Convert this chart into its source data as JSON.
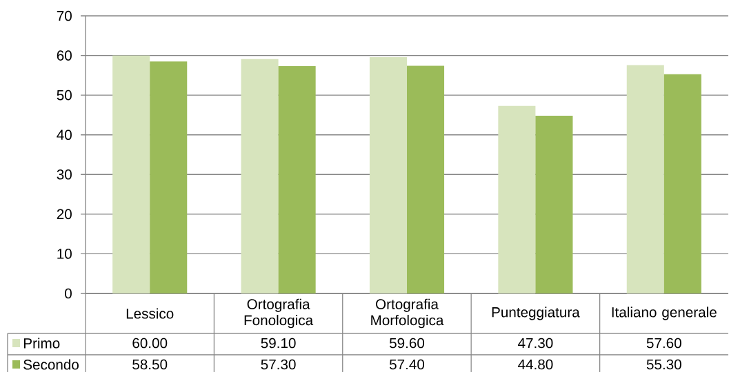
{
  "chart_data": {
    "type": "bar",
    "categories": [
      "Lessico",
      "Ortografia Fonologica",
      "Ortografia Morfologica",
      "Punteggiatura",
      "Italiano generale"
    ],
    "series": [
      {
        "name": "Primo",
        "color": "#d7e4bd",
        "values": [
          60.0,
          59.1,
          59.6,
          47.3,
          57.6
        ],
        "value_labels": [
          "60.00",
          "59.10",
          "59.60",
          "47.30",
          "57.60"
        ]
      },
      {
        "name": "Secondo",
        "color": "#9bbb59",
        "values": [
          58.5,
          57.3,
          57.4,
          44.8,
          55.3
        ],
        "value_labels": [
          "58.50",
          "57.30",
          "57.40",
          "44.80",
          "55.30"
        ]
      }
    ],
    "ylim": [
      0,
      70
    ],
    "yticks": [
      0,
      10,
      20,
      30,
      40,
      50,
      60,
      70
    ],
    "grid": "y",
    "legend": "bottom"
  }
}
